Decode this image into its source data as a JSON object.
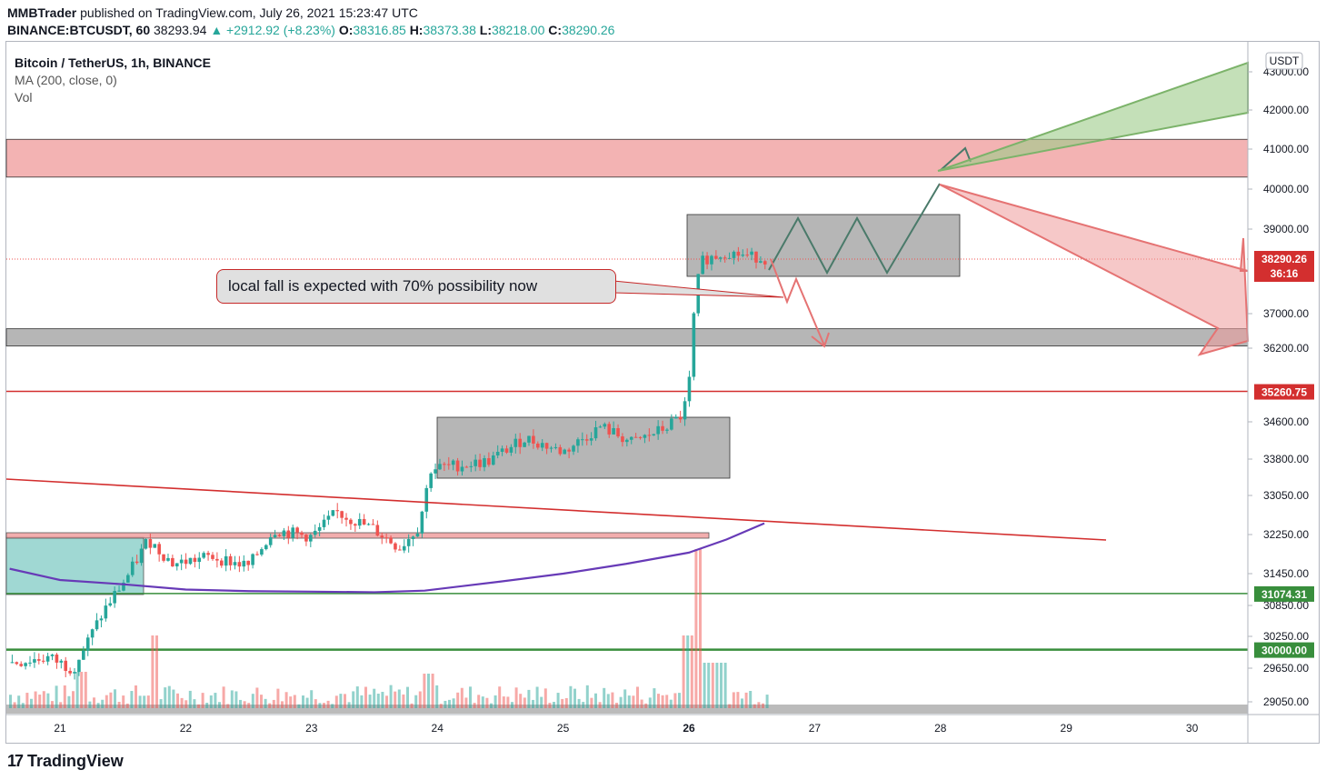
{
  "header": {
    "author": "MMBTrader",
    "published_text": " published on TradingView.com, July 26, 2021 15:23:47 UTC"
  },
  "ohlc_bar": {
    "symbol": "BINANCE:BTCUSDT, 60",
    "last": "38293.94",
    "change": "▲ +2912.92 (+8.23%)",
    "o_label": "O:",
    "o": "38316.85",
    "h_label": "H:",
    "h": "38373.38",
    "l_label": "L:",
    "l": "38218.00",
    "c_label": "C:",
    "c": "38290.26"
  },
  "legend": {
    "title": "Bitcoin / TetherUS, 1h, BINANCE",
    "indicator": "MA (200, close, 0)",
    "volume": "Vol"
  },
  "annotation": {
    "text": "local fall is expected with 70% possibility now"
  },
  "footer": {
    "logo_glyph": "17",
    "brand": "TradingView"
  },
  "colors": {
    "up": "#26a69a",
    "down": "#ef5350",
    "ma": "#673ab7",
    "resistance_zone": "#ef9a9a",
    "support_zone": "#9e9e9e",
    "green_line": "#388e3c",
    "red_line": "#d32f2f",
    "cyan_zone": "#80cbc4"
  },
  "chart_data": {
    "type": "line",
    "title": "Bitcoin / TetherUS, 1h, BINANCE",
    "currency_label": "USDT",
    "y_ticks": [
      "43000.00",
      "42000.00",
      "41000.00",
      "40000.00",
      "39000.00",
      "37000.00",
      "36200.00",
      "34600.00",
      "33800.00",
      "33050.00",
      "32250.00",
      "31450.00",
      "30850.00",
      "30250.00",
      "29650.00",
      "29050.00"
    ],
    "x_ticks": [
      "21",
      "22",
      "23",
      "24",
      "25",
      "26",
      "27",
      "28",
      "29",
      "30"
    ],
    "price_labels": [
      {
        "value": "38290.26",
        "sub": "36:16"
      },
      {
        "value": "35260.75"
      },
      {
        "value": "31074.31"
      },
      {
        "value": "30000.00"
      }
    ],
    "ylim": [
      28800,
      43500
    ],
    "xlim": [
      20.6,
      30.45
    ],
    "series": [
      {
        "name": "MA (200, close, 0)",
        "x": [
          20.6,
          21.0,
          21.5,
          22.0,
          22.5,
          23.0,
          23.5,
          23.9,
          24.5,
          25.0,
          25.5,
          26.0,
          26.3,
          26.6
        ],
        "values": [
          31550,
          31330,
          31250,
          31150,
          31120,
          31110,
          31100,
          31130,
          31300,
          31450,
          31650,
          31880,
          32150,
          32480
        ]
      }
    ],
    "price_path": {
      "x": [
        20.6,
        20.9,
        21.1,
        21.2,
        21.35,
        21.55,
        21.7,
        21.9,
        22.2,
        22.5,
        22.7,
        23.0,
        23.2,
        23.5,
        23.7,
        23.85,
        23.95,
        24.1,
        24.4,
        24.7,
        25.0,
        25.3,
        25.55,
        25.8,
        25.95,
        26.0,
        26.05,
        26.1,
        26.3,
        26.5,
        26.6
      ],
      "values": [
        29750,
        29850,
        29650,
        30050,
        30750,
        31450,
        32150,
        31650,
        31800,
        31600,
        32350,
        32200,
        32700,
        32350,
        31980,
        32400,
        33600,
        33650,
        33750,
        34250,
        33950,
        34500,
        34150,
        34450,
        34750,
        35350,
        37400,
        38250,
        38450,
        38350,
        38290
      ]
    }
  }
}
